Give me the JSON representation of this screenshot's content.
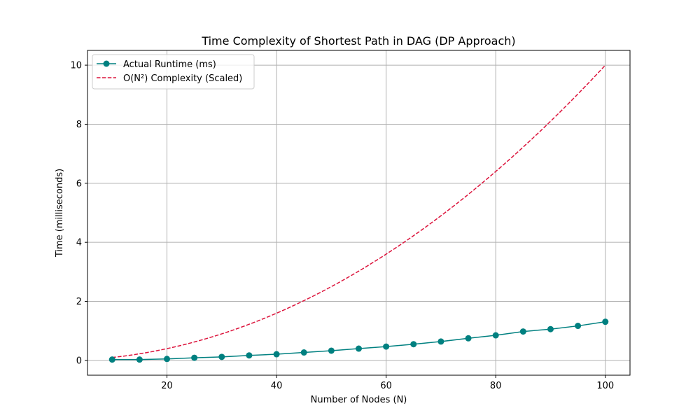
{
  "chart_data": {
    "type": "line",
    "title": "Time Complexity of Shortest Path in DAG (DP Approach)",
    "xlabel": "Number of Nodes (N)",
    "ylabel": "Time (milliseconds)",
    "xlim": [
      5.5,
      104.5
    ],
    "ylim": [
      -0.5,
      10.5
    ],
    "xticks": [
      20,
      40,
      60,
      80,
      100
    ],
    "yticks": [
      0,
      2,
      4,
      6,
      8,
      10
    ],
    "grid": true,
    "legend_position": "top-left",
    "x": [
      10,
      15,
      20,
      25,
      30,
      35,
      40,
      45,
      50,
      55,
      60,
      65,
      70,
      75,
      80,
      85,
      90,
      95,
      100
    ],
    "series": [
      {
        "name": "Actual Runtime (ms)",
        "color": "#008080",
        "style": "solid-marker",
        "values": [
          0.03,
          0.03,
          0.05,
          0.09,
          0.12,
          0.17,
          0.21,
          0.27,
          0.33,
          0.4,
          0.47,
          0.55,
          0.64,
          0.75,
          0.85,
          0.98,
          1.06,
          1.17,
          1.31
        ]
      },
      {
        "name": "O(N²) Complexity (Scaled)",
        "color": "#dc143c",
        "style": "dashed",
        "values": [
          0.1,
          0.225,
          0.4,
          0.625,
          0.9,
          1.225,
          1.6,
          2.025,
          2.5,
          3.025,
          3.6,
          4.225,
          4.9,
          5.625,
          6.4,
          7.225,
          8.1,
          9.025,
          10.0
        ]
      }
    ]
  }
}
